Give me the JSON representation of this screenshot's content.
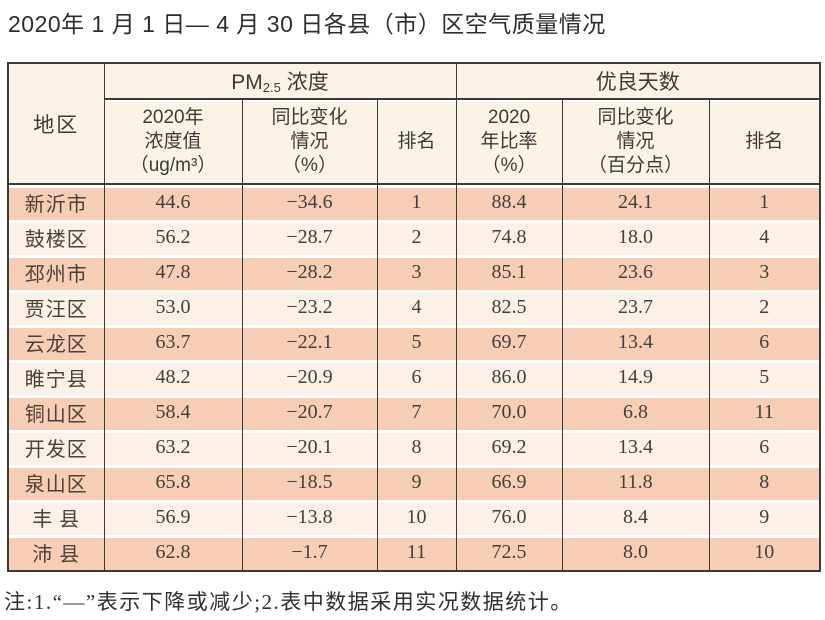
{
  "title": "2020年 1 月 1 日— 4 月 30 日各县（市）区空气质量情况",
  "colors": {
    "row_peach": "#f8cdb5",
    "row_light": "#fdf0e8",
    "header_cream": "#fbf2e6",
    "border": "#3a3a3a"
  },
  "table": {
    "region_header": "地区",
    "pm_group": {
      "prefix": "PM",
      "subscript": "2.5",
      "suffix": " 浓度"
    },
    "days_group": "优良天数",
    "subheaders": {
      "pm_value": "2020年\n浓度值\n（ug/m³）",
      "pm_change": "同比变化\n情况\n（%）",
      "pm_rank": "排名",
      "days_ratio": "2020\n年比率\n（%）",
      "days_change": "同比变化\n情况\n（百分点）",
      "days_rank": "排名"
    },
    "rows": [
      {
        "region": "新沂市",
        "pm_value": "44.6",
        "pm_change": "−34.6",
        "pm_rank": "1",
        "days_ratio": "88.4",
        "days_change": "24.1",
        "days_rank": "1"
      },
      {
        "region": "鼓楼区",
        "pm_value": "56.2",
        "pm_change": "−28.7",
        "pm_rank": "2",
        "days_ratio": "74.8",
        "days_change": "18.0",
        "days_rank": "4"
      },
      {
        "region": "邳州市",
        "pm_value": "47.8",
        "pm_change": "−28.2",
        "pm_rank": "3",
        "days_ratio": "85.1",
        "days_change": "23.6",
        "days_rank": "3"
      },
      {
        "region": "贾汪区",
        "pm_value": "53.0",
        "pm_change": "−23.2",
        "pm_rank": "4",
        "days_ratio": "82.5",
        "days_change": "23.7",
        "days_rank": "2"
      },
      {
        "region": "云龙区",
        "pm_value": "63.7",
        "pm_change": "−22.1",
        "pm_rank": "5",
        "days_ratio": "69.7",
        "days_change": "13.4",
        "days_rank": "6"
      },
      {
        "region": "睢宁县",
        "pm_value": "48.2",
        "pm_change": "−20.9",
        "pm_rank": "6",
        "days_ratio": "86.0",
        "days_change": "14.9",
        "days_rank": "5"
      },
      {
        "region": "铜山区",
        "pm_value": "58.4",
        "pm_change": "−20.7",
        "pm_rank": "7",
        "days_ratio": "70.0",
        "days_change": "6.8",
        "days_rank": "11"
      },
      {
        "region": "开发区",
        "pm_value": "63.2",
        "pm_change": "−20.1",
        "pm_rank": "8",
        "days_ratio": "69.2",
        "days_change": "13.4",
        "days_rank": "6"
      },
      {
        "region": "泉山区",
        "pm_value": "65.8",
        "pm_change": "−18.5",
        "pm_rank": "9",
        "days_ratio": "66.9",
        "days_change": "11.8",
        "days_rank": "8"
      },
      {
        "region": "丰 县",
        "pm_value": "56.9",
        "pm_change": "−13.8",
        "pm_rank": "10",
        "days_ratio": "76.0",
        "days_change": "8.4",
        "days_rank": "9"
      },
      {
        "region": "沛 县",
        "pm_value": "62.8",
        "pm_change": "−1.7",
        "pm_rank": "11",
        "days_ratio": "72.5",
        "days_change": "8.0",
        "days_rank": "10"
      }
    ]
  },
  "footnote": "注:1.“—”表示下降或减少;2.表中数据采用实况数据统计。"
}
